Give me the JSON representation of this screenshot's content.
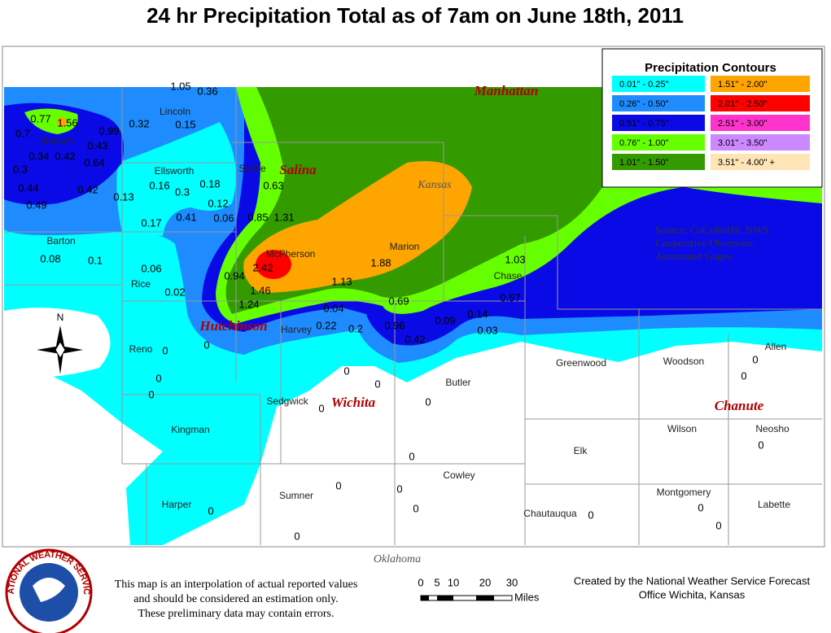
{
  "title": "24 hr Precipitation Total as of 7am on June 18th, 2011",
  "legend": {
    "title": "Precipitation Contours",
    "items": [
      {
        "label": "0.01\" - 0.25\"",
        "color": "#00ffff"
      },
      {
        "label": "0.26\" - 0.50\"",
        "color": "#1e8cff"
      },
      {
        "label": "0.51\" - 0.75\"",
        "color": "#0a0ae6"
      },
      {
        "label": "0.76\" - 1.00\"",
        "color": "#66ff00"
      },
      {
        "label": "1.01\" - 1.50\"",
        "color": "#339a00"
      },
      {
        "label": "1.51\" - 2.00\"",
        "color": "#ffa500"
      },
      {
        "label": "2.01\" - 2.50\"",
        "color": "#ff0000"
      },
      {
        "label": "2.51\" - 3.00\"",
        "color": "#ff33cc"
      },
      {
        "label": "3.01\" - 3.50\"",
        "color": "#cc88ff"
      },
      {
        "label": "3.51\" - 4.00\" +",
        "color": "#ffe4b5"
      }
    ]
  },
  "source_note": [
    "Source: CoCoRaHS, NWS",
    "Cooperative Observers,",
    "Automated Gages"
  ],
  "region_labels": [
    "Kansas",
    "Oklahoma"
  ],
  "cities": [
    "Manhattan",
    "Salina",
    "Hutchinson",
    "Wichita",
    "Chanute"
  ],
  "counties": [
    "Lincoln",
    "Russell",
    "Ellsworth",
    "Saline",
    "Barton",
    "Rice",
    "McPherson",
    "Marion",
    "Chase",
    "Harvey",
    "Reno",
    "Sedgwick",
    "Butler",
    "Greenwood",
    "Woodson",
    "Allen",
    "Kingman",
    "Wilson",
    "Neosho",
    "Elk",
    "Cowley",
    "Harper",
    "Sumner",
    "Chautauqua",
    "Montgomery",
    "Labette"
  ],
  "readings": [
    "1.05",
    "0.36",
    "0.77",
    "1.56",
    "0.7",
    "0.99",
    "0.32",
    "0.15",
    "0.43",
    "0.34",
    "0.42",
    "0.64",
    "0.3",
    "0.44",
    "0.42",
    "0.13",
    "0.49",
    "0.16",
    "0.3",
    "0.18",
    "0.63",
    "0.12",
    "0.41",
    "0.06",
    "0.85",
    "1.31",
    "0.17",
    "0.08",
    "0.1",
    "0.06",
    "2.42",
    "1.88",
    "1.03",
    "0.94",
    "1.46",
    "0.02",
    "1.13",
    "1.24",
    "0.69",
    "0.57",
    "0.04",
    "0.14",
    "0.09",
    "0.22",
    "0.2",
    "0.96",
    "0.03",
    "0.42",
    "0",
    "0",
    "0",
    "0",
    "0",
    "0",
    "0",
    "0",
    "0",
    "0",
    "0",
    "0",
    "0",
    "0",
    "0",
    "0",
    "0",
    "0",
    "0",
    "0"
  ],
  "compass": "N",
  "logo": "NATIONAL WEATHER SERVICE",
  "disclaimer": [
    "This map is an interpolation of actual reported values",
    "and should be considered an estimation only.",
    "These preliminary data may contain errors."
  ],
  "scale": {
    "ticks": [
      "0",
      "5",
      "10",
      "20",
      "30"
    ],
    "unit": "Miles"
  },
  "credit": [
    "Created by the National Weather Service Forecast",
    "Office Wichita, Kansas"
  ]
}
